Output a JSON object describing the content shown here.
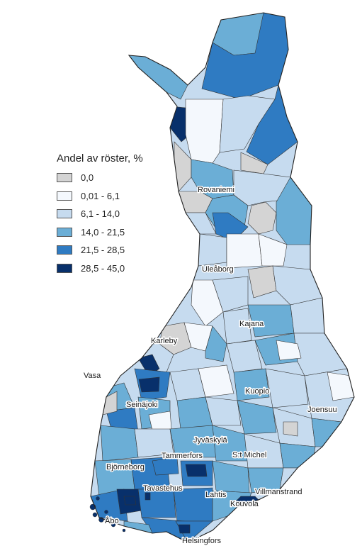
{
  "legend": {
    "title": "Andel av röster, %",
    "classes": [
      {
        "label": "0,0",
        "color": "#d4d4d4"
      },
      {
        "label": "0,01 - 6,1",
        "color": "#f4f8fd"
      },
      {
        "label": "6,1 - 14,0",
        "color": "#c6dbef"
      },
      {
        "label": "14,0 - 21,5",
        "color": "#6baed6"
      },
      {
        "label": "21,5 - 28,5",
        "color": "#2f7bc2"
      },
      {
        "label": "28,5 - 45,0",
        "color": "#08306b"
      }
    ]
  },
  "cities": {
    "rovaniemi": "Rovaniemi",
    "uleaborg": "Uleåborg",
    "kajana": "Kajana",
    "karleby": "Karleby",
    "vasa": "Vasa",
    "seinajoki": "Seinäjoki",
    "kuopio": "Kuopio",
    "joensuu": "Joensuu",
    "jyvaskyla": "Jyväskylä",
    "st_michel": "S:t Michel",
    "tammerfors": "Tammerfors",
    "bjorneborg": "Björneborg",
    "tavastehus": "Tavastehus",
    "lahtis": "Lahtis",
    "villmanstrand": "Villmanstrand",
    "kouvola": "Kouvola",
    "abo": "Åbo",
    "helsingfors": "Helsingfors"
  }
}
